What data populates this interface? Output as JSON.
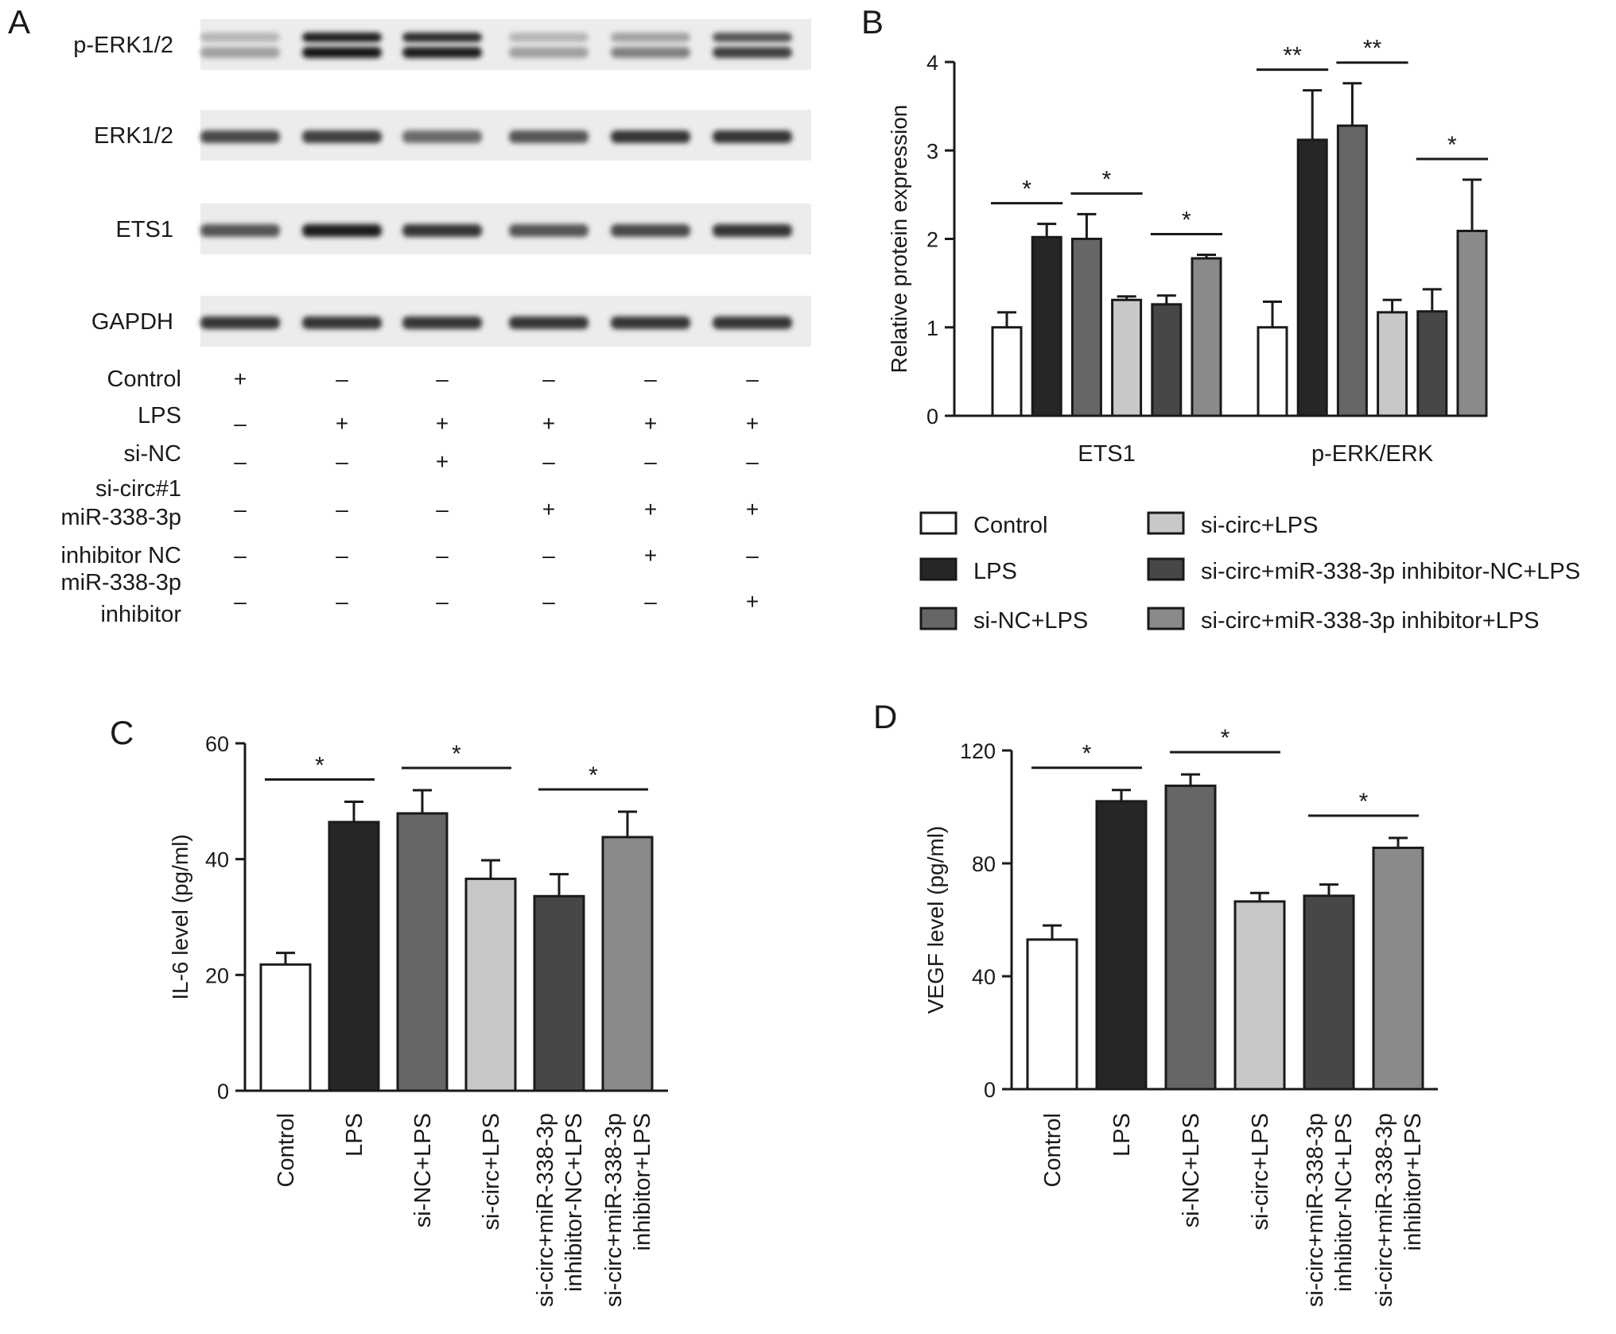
{
  "panels": {
    "a": "A",
    "b": "B",
    "c": "C",
    "d": "D"
  },
  "colors": {
    "control": "#ffffff",
    "lps": "#262626",
    "sinc_lps": "#666666",
    "sicirc_lps": "#c8c8c8",
    "sicirc_inhnc_lps": "#474747",
    "sicirc_inh_lps": "#8a8a8a"
  },
  "blot": {
    "rows": [
      "p-ERK1/2",
      "ERK1/2",
      "ETS1",
      "GAPDH"
    ],
    "conditions": [
      {
        "label": "Control",
        "signs": [
          "+",
          "–",
          "–",
          "–",
          "–",
          "–"
        ]
      },
      {
        "label": "LPS",
        "signs": [
          "–",
          "+",
          "+",
          "+",
          "+",
          "+"
        ]
      },
      {
        "label": "si-NC",
        "signs": [
          "–",
          "–",
          "+",
          "–",
          "–",
          "–"
        ]
      },
      {
        "label": "si-circ#1",
        "signs": [
          "–",
          "–",
          "–",
          "+",
          "+",
          "+"
        ]
      },
      {
        "label": "miR-338-3p",
        "signs": []
      },
      {
        "label": "inhibitor NC",
        "signs": [
          "–",
          "–",
          "–",
          "–",
          "+",
          "–"
        ]
      },
      {
        "label": "miR-338-3p",
        "signs": []
      },
      {
        "label": "inhibitor",
        "signs": [
          "–",
          "–",
          "–",
          "–",
          "–",
          "+"
        ]
      }
    ]
  },
  "legend": [
    "Control",
    "LPS",
    "si-NC+LPS",
    "si-circ+LPS",
    "si-circ+miR-338-3p inhibitor-NC+LPS",
    "si-circ+miR-338-3p inhibitor+LPS"
  ],
  "chart_data": [
    {
      "panel": "B",
      "type": "bar",
      "categories": [
        "ETS1",
        "p-ERK/ERK"
      ],
      "ylabel": "Relative protein expression",
      "ylim": [
        0,
        4
      ],
      "yticks": [
        0,
        1,
        2,
        3,
        4
      ],
      "series": [
        {
          "name": "Control",
          "values": [
            1.0,
            1.0
          ],
          "errors": [
            0.17,
            0.29
          ]
        },
        {
          "name": "LPS",
          "values": [
            2.02,
            3.12
          ],
          "errors": [
            0.15,
            0.56
          ]
        },
        {
          "name": "si-NC+LPS",
          "values": [
            2.0,
            3.28
          ],
          "errors": [
            0.28,
            0.48
          ]
        },
        {
          "name": "si-circ+LPS",
          "values": [
            1.31,
            1.17
          ],
          "errors": [
            0.04,
            0.14
          ]
        },
        {
          "name": "si-circ+miR-338-3p inhibitor-NC+LPS",
          "values": [
            1.26,
            1.18
          ],
          "errors": [
            0.1,
            0.25
          ]
        },
        {
          "name": "si-circ+miR-338-3p inhibitor+LPS",
          "values": [
            1.78,
            2.09
          ],
          "errors": [
            0.04,
            0.58
          ]
        }
      ],
      "significance": [
        {
          "group": 0,
          "from": 0,
          "to": 1,
          "label": "*"
        },
        {
          "group": 0,
          "from": 2,
          "to": 3,
          "label": "*"
        },
        {
          "group": 0,
          "from": 4,
          "to": 5,
          "label": "*"
        },
        {
          "group": 1,
          "from": 0,
          "to": 1,
          "label": "**"
        },
        {
          "group": 1,
          "from": 2,
          "to": 3,
          "label": "**"
        },
        {
          "group": 1,
          "from": 4,
          "to": 5,
          "label": "*"
        }
      ]
    },
    {
      "panel": "C",
      "type": "bar",
      "categories": [
        "Control",
        "LPS",
        "si-NC+LPS",
        "si-circ+LPS",
        "si-circ+miR-338-3p inhibitor-NC+LPS",
        "si-circ+miR-338-3p inhibitor+LPS"
      ],
      "category_lines": [
        [
          "Control"
        ],
        [
          "LPS"
        ],
        [
          "si-NC+LPS"
        ],
        [
          "si-circ+LPS"
        ],
        [
          "si-circ+miR-338-3p",
          "inhibitor-NC+LPS"
        ],
        [
          "si-circ+miR-338-3p",
          "inhibitor+LPS"
        ]
      ],
      "ylabel": "IL-6 level (pg/ml)",
      "ylim": [
        0,
        60
      ],
      "yticks": [
        0,
        20,
        40,
        60
      ],
      "values": [
        21.8,
        46.4,
        47.9,
        36.6,
        33.6,
        43.8
      ],
      "errors": [
        2.0,
        3.5,
        4.0,
        3.2,
        3.8,
        4.4
      ],
      "significance": [
        {
          "from": 0,
          "to": 1,
          "label": "*"
        },
        {
          "from": 2,
          "to": 3,
          "label": "*"
        },
        {
          "from": 4,
          "to": 5,
          "label": "*"
        }
      ]
    },
    {
      "panel": "D",
      "type": "bar",
      "categories": [
        "Control",
        "LPS",
        "si-NC+LPS",
        "si-circ+LPS",
        "si-circ+miR-338-3p inhibitor-NC+LPS",
        "si-circ+miR-338-3p inhibitor+LPS"
      ],
      "category_lines": [
        [
          "Control"
        ],
        [
          "LPS"
        ],
        [
          "si-NC+LPS"
        ],
        [
          "si-circ+LPS"
        ],
        [
          "si-circ+miR-338-3p",
          "inhibitor-NC+LPS"
        ],
        [
          "si-circ+miR-338-3p",
          "inhibitor+LPS"
        ]
      ],
      "ylabel": "VEGF level (pg/ml)",
      "ylim": [
        0,
        120
      ],
      "yticks": [
        0,
        40,
        80,
        120
      ],
      "values": [
        53.0,
        102.0,
        107.5,
        66.5,
        68.5,
        85.5
      ],
      "errors": [
        5.0,
        4.0,
        4.0,
        3.0,
        4.0,
        3.5
      ],
      "significance": [
        {
          "from": 0,
          "to": 1,
          "label": "*"
        },
        {
          "from": 2,
          "to": 3,
          "label": "*"
        },
        {
          "from": 4,
          "to": 5,
          "label": "*"
        }
      ]
    }
  ]
}
